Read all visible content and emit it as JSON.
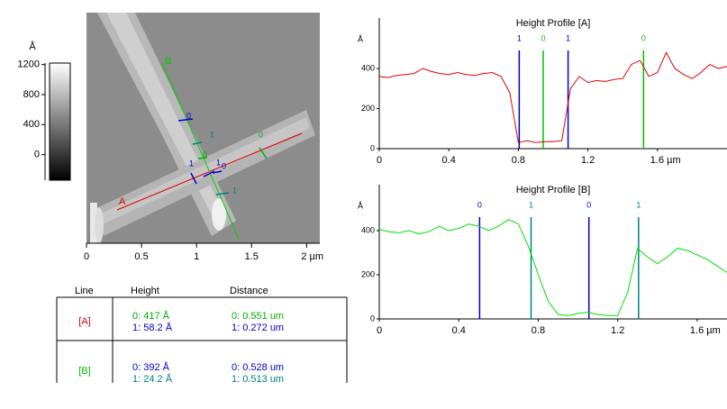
{
  "chart_data": [
    {
      "type": "image",
      "xlim": [
        0,
        2.12
      ],
      "xticks": [
        0,
        0.5,
        1,
        1.5,
        {
          "value": 2,
          "label": "2 µm"
        }
      ],
      "colorbar": {
        "label": "Å",
        "lim": [
          -340,
          1220
        ],
        "ticks": [
          0,
          400,
          800,
          1200
        ]
      },
      "lines": [
        {
          "name": "A",
          "color": "#e00000"
        },
        {
          "name": "B",
          "color": "#00d000"
        }
      ],
      "cursor_labels": [
        {
          "label": "0",
          "color": "#0000cc"
        },
        {
          "label": "1",
          "color": "#008080"
        },
        {
          "label": "0",
          "color": "#00b000"
        },
        {
          "label": "1",
          "color": "#0000cc"
        },
        {
          "label": "1",
          "color": "#0000cc"
        },
        {
          "label": "0",
          "color": "#0000cc"
        },
        {
          "label": "1",
          "color": "#008080"
        },
        {
          "label": "0",
          "color": "#00b000"
        }
      ]
    },
    {
      "type": "line",
      "title": "Height Profile [A]",
      "y_label": "Å",
      "xlim": [
        0,
        2.0
      ],
      "ylim": [
        0,
        652
      ],
      "xticks": [
        0,
        0.4,
        0.8,
        1.2,
        {
          "value": 1.6,
          "label": "1.6 µm"
        }
      ],
      "yticks": [
        0,
        200,
        400
      ],
      "series": [
        {
          "name": "A",
          "color": "#e00000",
          "x": [
            0,
            0.05,
            0.1,
            0.15,
            0.2,
            0.25,
            0.3,
            0.35,
            0.4,
            0.45,
            0.5,
            0.55,
            0.6,
            0.65,
            0.7,
            0.75,
            0.8,
            0.85,
            0.9,
            0.95,
            1.0,
            1.05,
            1.1,
            1.15,
            1.2,
            1.25,
            1.3,
            1.35,
            1.4,
            1.45,
            1.5,
            1.55,
            1.6,
            1.65,
            1.7,
            1.75,
            1.8,
            1.85,
            1.9,
            1.95,
            2.0
          ],
          "values": [
            360,
            355,
            365,
            370,
            375,
            400,
            385,
            375,
            370,
            380,
            370,
            365,
            375,
            380,
            360,
            280,
            30,
            40,
            30,
            35,
            35,
            40,
            300,
            360,
            330,
            340,
            335,
            345,
            350,
            420,
            440,
            360,
            380,
            480,
            400,
            370,
            350,
            380,
            420,
            400,
            410
          ]
        }
      ],
      "cursors": [
        {
          "label": "1",
          "x": 0.805,
          "color": "#0000cc"
        },
        {
          "label": "0",
          "x": 0.943,
          "color": "#00c000"
        },
        {
          "label": "1",
          "x": 1.086,
          "color": "#0000cc"
        },
        {
          "label": "0",
          "x": 1.52,
          "color": "#00c000"
        }
      ]
    },
    {
      "type": "line",
      "title": "Height Profile [B]",
      "y_label": "Å",
      "xlim": [
        0,
        1.75
      ],
      "ylim": [
        0,
        608
      ],
      "xticks": [
        0,
        0.4,
        0.8,
        1.2,
        {
          "value": 1.6,
          "label": "1.6 µm"
        }
      ],
      "yticks": [
        0,
        200,
        400
      ],
      "series": [
        {
          "name": "B",
          "color": "#00e000",
          "x": [
            0,
            0.05,
            0.1,
            0.15,
            0.2,
            0.25,
            0.3,
            0.35,
            0.4,
            0.45,
            0.5,
            0.55,
            0.6,
            0.65,
            0.7,
            0.75,
            0.8,
            0.85,
            0.9,
            0.95,
            1.0,
            1.05,
            1.1,
            1.15,
            1.2,
            1.25,
            1.3,
            1.35,
            1.4,
            1.45,
            1.5,
            1.55,
            1.6,
            1.65,
            1.7,
            1.75
          ],
          "values": [
            405,
            395,
            390,
            400,
            385,
            395,
            420,
            400,
            410,
            430,
            420,
            400,
            420,
            450,
            430,
            330,
            200,
            80,
            20,
            15,
            25,
            30,
            20,
            15,
            15,
            120,
            320,
            280,
            250,
            280,
            320,
            310,
            290,
            270,
            240,
            210
          ]
        }
      ],
      "cursors": [
        {
          "label": "0",
          "x": 0.505,
          "color": "#0000cc"
        },
        {
          "label": "1",
          "x": 0.764,
          "color": "#008080"
        },
        {
          "label": "0",
          "x": 1.055,
          "color": "#0000cc"
        },
        {
          "label": "1",
          "x": 1.305,
          "color": "#008080"
        }
      ]
    }
  ],
  "table": {
    "header": [
      "Line",
      "Height",
      "Distance"
    ],
    "rows": [
      [
        "[A]",
        [
          "0:  417 Å",
          "1:  58.2 Å"
        ],
        [
          "0: 0.551 um",
          "1: 0.272 um"
        ]
      ],
      [
        "[B]",
        [
          "0:  392 Å",
          "1:  24.2 Å"
        ],
        [
          "0: 0.528 um",
          "1: 0.513 um"
        ]
      ]
    ]
  }
}
